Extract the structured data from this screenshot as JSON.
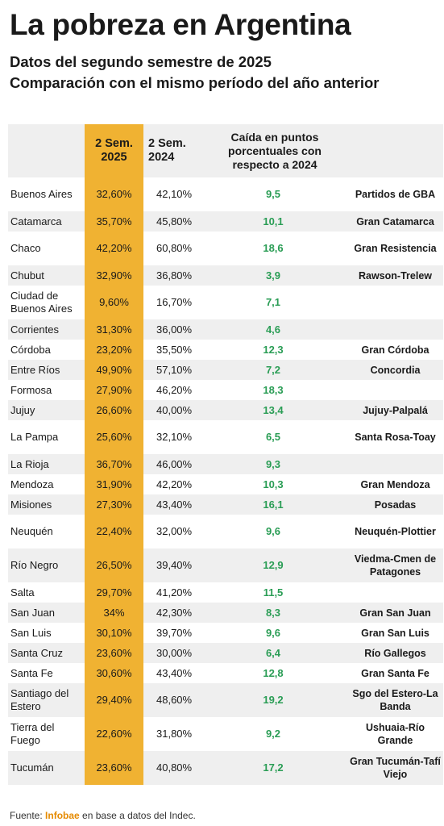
{
  "title": "La pobreza en Argentina",
  "subtitle_line1": "Datos del segundo semestre de 2025",
  "subtitle_line2": "Comparación con el mismo período del año anterior",
  "headers": {
    "col2025": [
      "2 Sem.",
      "2025"
    ],
    "col2024": [
      "2 Sem.",
      "2024"
    ],
    "caida": "Caída en puntos porcentuales con respecto a 2024"
  },
  "rows": [
    {
      "prov": "Buenos Aires",
      "v2025": "32,60%",
      "v2024": "42,10%",
      "caida": "9,5",
      "aglo": "Partidos de GBA"
    },
    {
      "prov": "Catamarca",
      "v2025": "35,70%",
      "v2024": "45,80%",
      "caida": "10,1",
      "aglo": "Gran Catamarca"
    },
    {
      "prov": "Chaco",
      "v2025": "42,20%",
      "v2024": "60,80%",
      "caida": "18,6",
      "aglo": "Gran Resistencia"
    },
    {
      "prov": "Chubut",
      "v2025": "32,90%",
      "v2024": "36,80%",
      "caida": "3,9",
      "aglo": "Rawson-Trelew"
    },
    {
      "prov": "Ciudad de Buenos Aires",
      "v2025": "9,60%",
      "v2024": "16,70%",
      "caida": "7,1",
      "aglo": ""
    },
    {
      "prov": "Corrientes",
      "v2025": "31,30%",
      "v2024": "36,00%",
      "caida": "4,6",
      "aglo": ""
    },
    {
      "prov": "Córdoba",
      "v2025": "23,20%",
      "v2024": "35,50%",
      "caida": "12,3",
      "aglo": "Gran Córdoba"
    },
    {
      "prov": "Entre Ríos",
      "v2025": "49,90%",
      "v2024": "57,10%",
      "caida": "7,2",
      "aglo": "Concordia"
    },
    {
      "prov": "Formosa",
      "v2025": "27,90%",
      "v2024": "46,20%",
      "caida": "18,3",
      "aglo": ""
    },
    {
      "prov": "Jujuy",
      "v2025": "26,60%",
      "v2024": "40,00%",
      "caida": "13,4",
      "aglo": "Jujuy-Palpalá"
    },
    {
      "prov": "La Pampa",
      "v2025": "25,60%",
      "v2024": "32,10%",
      "caida": "6,5",
      "aglo": "Santa Rosa-Toay"
    },
    {
      "prov": "La Rioja",
      "v2025": "36,70%",
      "v2024": "46,00%",
      "caida": "9,3",
      "aglo": ""
    },
    {
      "prov": "Mendoza",
      "v2025": "31,90%",
      "v2024": "42,20%",
      "caida": "10,3",
      "aglo": "Gran Mendoza"
    },
    {
      "prov": "Misiones",
      "v2025": "27,30%",
      "v2024": "43,40%",
      "caida": "16,1",
      "aglo": "Posadas"
    },
    {
      "prov": "Neuquén",
      "v2025": "22,40%",
      "v2024": "32,00%",
      "caida": "9,6",
      "aglo": "Neuquén-Plottier"
    },
    {
      "prov": "Río Negro",
      "v2025": "26,50%",
      "v2024": "39,40%",
      "caida": "12,9",
      "aglo": "Viedma-Cmen de Patagones"
    },
    {
      "prov": "Salta",
      "v2025": "29,70%",
      "v2024": "41,20%",
      "caida": "11,5",
      "aglo": ""
    },
    {
      "prov": "San Juan",
      "v2025": "34%",
      "v2024": "42,30%",
      "caida": "8,3",
      "aglo": "Gran San Juan"
    },
    {
      "prov": "San Luis",
      "v2025": "30,10%",
      "v2024": "39,70%",
      "caida": "9,6",
      "aglo": "Gran San Luis"
    },
    {
      "prov": "Santa Cruz",
      "v2025": "23,60%",
      "v2024": "30,00%",
      "caida": "6,4",
      "aglo": "Río Gallegos"
    },
    {
      "prov": "Santa Fe",
      "v2025": "30,60%",
      "v2024": "43,40%",
      "caida": "12,8",
      "aglo": "Gran Santa Fe"
    },
    {
      "prov": "Santiago del Estero",
      "v2025": "29,40%",
      "v2024": "48,60%",
      "caida": "19,2",
      "aglo": "Sgo del Estero-La Banda"
    },
    {
      "prov": "Tierra del Fuego",
      "v2025": "22,60%",
      "v2024": "31,80%",
      "caida": "9,2",
      "aglo": "Ushuaia-Río Grande"
    },
    {
      "prov": "Tucumán",
      "v2025": "23,60%",
      "v2024": "40,80%",
      "caida": "17,2",
      "aglo": "Gran Tucumán-Tafí Viejo"
    }
  ],
  "source": {
    "prefix": "Fuente: ",
    "brand": "Infobae",
    "suffix": " en base a datos del Indec."
  },
  "colors": {
    "highlight": "#f0b232",
    "green": "#2a9d55",
    "stripe": "#efefef",
    "brand": "#e58a00"
  }
}
